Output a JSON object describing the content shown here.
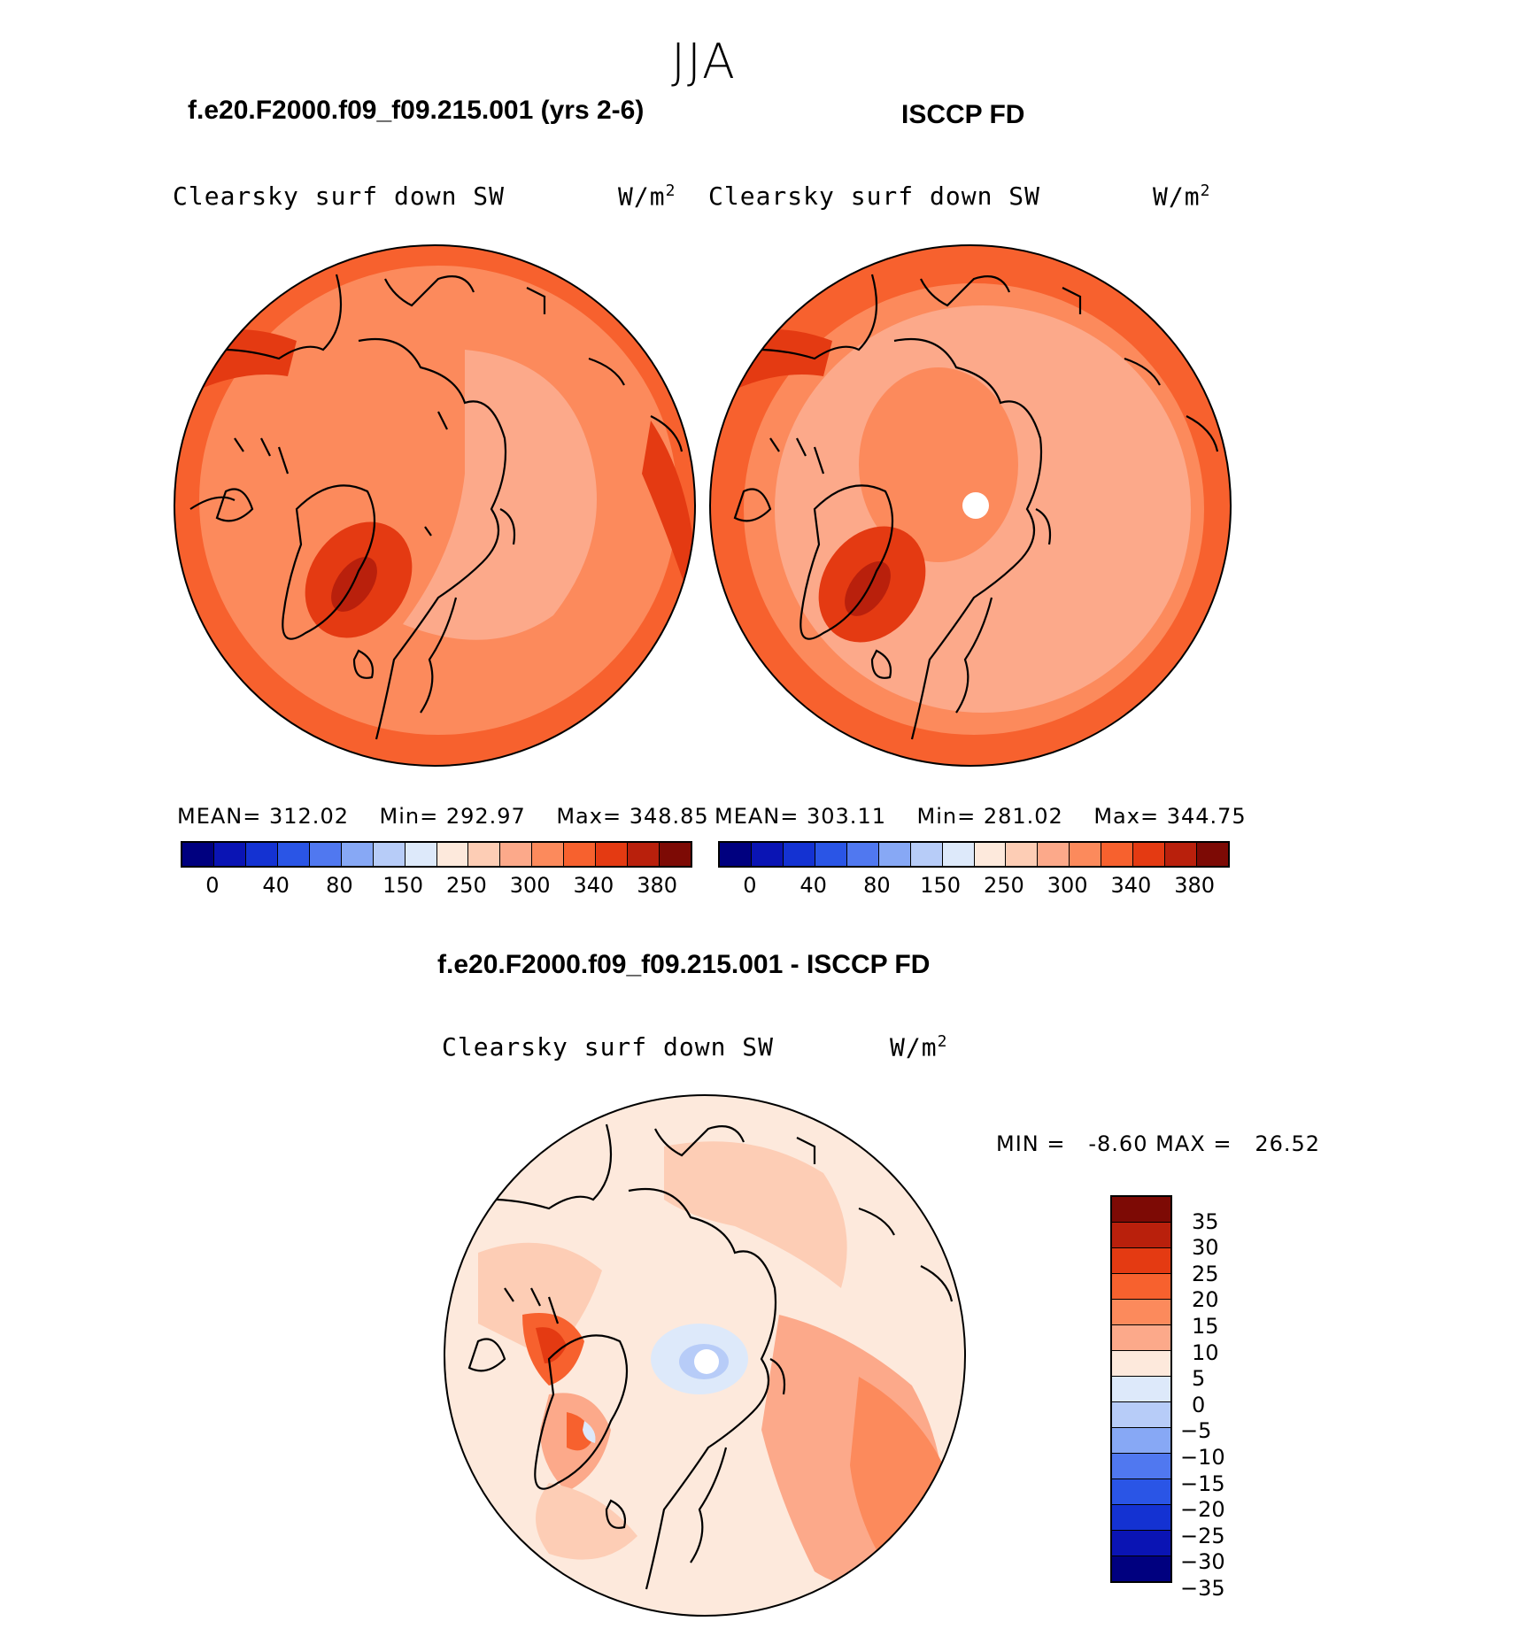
{
  "figure": {
    "season": "JJA",
    "panels": [
      {
        "title": "f.e20.F2000.f09_f09.215.001 (yrs 2-6)",
        "variable": "Clearsky surf down SW",
        "units_base": "W/m",
        "units_exp": "2",
        "stats": {
          "mean_label": "MEAN=",
          "mean": "312.02",
          "min_label": "Min=",
          "min": "292.97",
          "max_label": "Max=",
          "max": "348.85"
        }
      },
      {
        "title": "ISCCP FD",
        "variable": "Clearsky surf down SW",
        "units_base": "W/m",
        "units_exp": "2",
        "stats": {
          "mean_label": "MEAN=",
          "mean": "303.11",
          "min_label": "Min=",
          "min": "281.02",
          "max_label": "Max=",
          "max": "344.75"
        }
      },
      {
        "title": "f.e20.F2000.f09_f09.215.001 - ISCCP FD",
        "variable": "Clearsky surf down SW",
        "units_base": "W/m",
        "units_exp": "2",
        "stats": {
          "min_label": "MIN =",
          "min": "-8.60",
          "max_label": "MAX =",
          "max": "26.52"
        }
      }
    ],
    "abs_colorbar": {
      "colors": [
        "#00007f",
        "#0a14b4",
        "#1432d2",
        "#2a55e6",
        "#5078f0",
        "#87a8f5",
        "#b7ccf8",
        "#dde9fa",
        "#fde9dc",
        "#fdcdb5",
        "#fca98a",
        "#fc8a5c",
        "#f7612e",
        "#e43a12",
        "#b9200c",
        "#7d0a05"
      ],
      "tick_labels": [
        "0",
        "40",
        "80",
        "150",
        "250",
        "300",
        "340",
        "380"
      ]
    },
    "diff_colorbar": {
      "colors": [
        "#7d0a05",
        "#b9200c",
        "#e43a12",
        "#f7612e",
        "#fc8a5c",
        "#fca98a",
        "#fde9dc",
        "#dde9fa",
        "#b7ccf8",
        "#87a8f5",
        "#5078f0",
        "#2a55e6",
        "#1432d2",
        "#0a14b4",
        "#00007f"
      ],
      "tick_labels": [
        "35",
        "30",
        "25",
        "20",
        "15",
        "10",
        "5",
        "0",
        "-5",
        "-10",
        "-15",
        "-20",
        "-25",
        "-30",
        "-35"
      ]
    }
  }
}
